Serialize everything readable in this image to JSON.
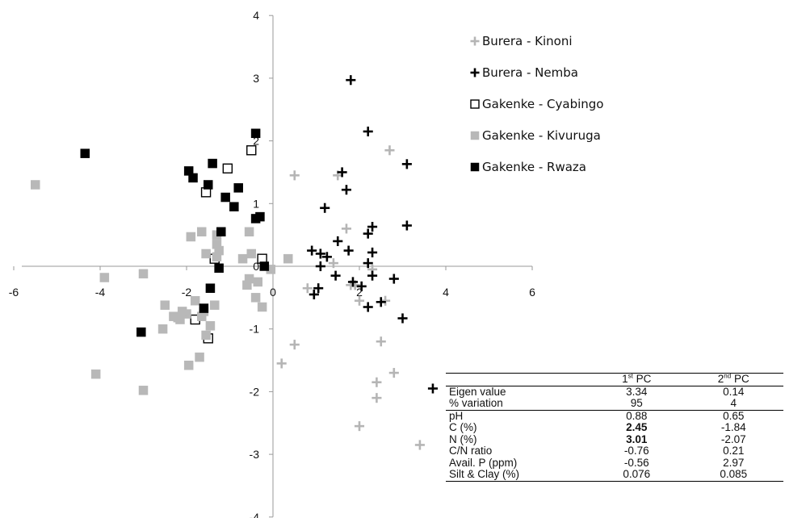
{
  "chart_data": {
    "type": "scatter",
    "xlim": [
      -6,
      6
    ],
    "ylim": [
      -4,
      4
    ],
    "x_ticks": [
      "-6",
      "-4",
      "-2",
      "0",
      "2",
      "4",
      "6"
    ],
    "y_ticks": [
      "-4",
      "-3",
      "-2",
      "-1",
      "0",
      "1",
      "2",
      "3",
      "4"
    ],
    "grid": false,
    "legend_position": "top-right",
    "series": [
      {
        "name": "Burera - Kinoni",
        "marker": "plus",
        "color": "#b5b5b5",
        "points": [
          [
            0.5,
            1.45
          ],
          [
            2.7,
            1.85
          ],
          [
            1.5,
            1.45
          ],
          [
            0.8,
            -0.35
          ],
          [
            1.8,
            -0.3
          ],
          [
            2.0,
            -0.55
          ],
          [
            2.6,
            -0.55
          ],
          [
            1.9,
            -0.3
          ],
          [
            2.3,
            -0.05
          ],
          [
            1.4,
            0.05
          ],
          [
            1.7,
            0.6
          ],
          [
            0.5,
            -1.25
          ],
          [
            0.2,
            -1.55
          ],
          [
            2.5,
            -1.2
          ],
          [
            2.4,
            -1.85
          ],
          [
            2.4,
            -2.1
          ],
          [
            2.8,
            -1.7
          ],
          [
            2.0,
            -2.55
          ],
          [
            3.4,
            -2.85
          ]
        ]
      },
      {
        "name": "Burera - Nemba",
        "marker": "plus",
        "color": "#000000",
        "points": [
          [
            1.8,
            2.97
          ],
          [
            2.2,
            2.15
          ],
          [
            1.6,
            1.5
          ],
          [
            3.1,
            1.63
          ],
          [
            1.7,
            1.22
          ],
          [
            1.2,
            0.93
          ],
          [
            2.2,
            0.52
          ],
          [
            2.3,
            0.63
          ],
          [
            3.1,
            0.65
          ],
          [
            1.5,
            0.4
          ],
          [
            0.9,
            0.25
          ],
          [
            1.1,
            0.2
          ],
          [
            1.25,
            0.15
          ],
          [
            1.75,
            0.25
          ],
          [
            2.3,
            0.22
          ],
          [
            2.2,
            0.05
          ],
          [
            1.1,
            0.0
          ],
          [
            1.45,
            -0.15
          ],
          [
            2.3,
            -0.15
          ],
          [
            1.85,
            -0.25
          ],
          [
            2.05,
            -0.32
          ],
          [
            2.8,
            -0.2
          ],
          [
            1.05,
            -0.35
          ],
          [
            0.95,
            -0.45
          ],
          [
            2.2,
            -0.65
          ],
          [
            2.5,
            -0.57
          ],
          [
            3.0,
            -0.83
          ],
          [
            3.7,
            -1.95
          ]
        ]
      },
      {
        "name": "Gakenke - Cyabingo",
        "marker": "open-square",
        "color": "#000000",
        "points": [
          [
            -0.5,
            1.85
          ],
          [
            -1.05,
            1.56
          ],
          [
            -1.55,
            1.18
          ],
          [
            -1.35,
            0.12
          ],
          [
            -0.25,
            0.12
          ],
          [
            -1.8,
            -0.85
          ],
          [
            -1.5,
            -1.15
          ]
        ]
      },
      {
        "name": "Gakenke - Kivuruga",
        "marker": "filled-square",
        "color": "#b8b8b8",
        "points": [
          [
            -5.5,
            1.3
          ],
          [
            -1.3,
            0.5
          ],
          [
            -1.65,
            0.55
          ],
          [
            -1.9,
            0.47
          ],
          [
            -0.55,
            0.55
          ],
          [
            -1.3,
            0.35
          ],
          [
            -1.25,
            0.25
          ],
          [
            -1.55,
            0.2
          ],
          [
            -0.5,
            0.2
          ],
          [
            -1.3,
            0.15
          ],
          [
            -0.05,
            -0.05
          ],
          [
            -0.7,
            0.12
          ],
          [
            -0.55,
            -0.2
          ],
          [
            -0.35,
            -0.25
          ],
          [
            0.35,
            0.12
          ],
          [
            -3.9,
            -0.18
          ],
          [
            -3.0,
            -0.12
          ],
          [
            -1.8,
            -0.55
          ],
          [
            -2.5,
            -0.62
          ],
          [
            -0.6,
            -0.3
          ],
          [
            -1.6,
            -0.72
          ],
          [
            -2.0,
            -0.76
          ],
          [
            -2.1,
            -0.72
          ],
          [
            -2.2,
            -0.82
          ],
          [
            -2.3,
            -0.8
          ],
          [
            -2.15,
            -0.85
          ],
          [
            -1.65,
            -0.8
          ],
          [
            -1.35,
            -0.62
          ],
          [
            -2.55,
            -1.0
          ],
          [
            -1.45,
            -0.95
          ],
          [
            -1.55,
            -1.1
          ],
          [
            -0.4,
            -0.5
          ],
          [
            -0.25,
            -0.65
          ],
          [
            -1.7,
            -1.45
          ],
          [
            -1.95,
            -1.58
          ],
          [
            -4.1,
            -1.72
          ],
          [
            -3.0,
            -1.98
          ]
        ]
      },
      {
        "name": "Gakenke - Rwaza",
        "marker": "filled-square",
        "color": "#000000",
        "points": [
          [
            -4.35,
            1.8
          ],
          [
            -1.95,
            1.52
          ],
          [
            -1.85,
            1.41
          ],
          [
            -1.5,
            1.3
          ],
          [
            -1.4,
            1.64
          ],
          [
            -0.8,
            1.25
          ],
          [
            -1.1,
            1.1
          ],
          [
            -0.9,
            0.95
          ],
          [
            -0.4,
            2.12
          ],
          [
            -0.4,
            0.76
          ],
          [
            -0.3,
            0.79
          ],
          [
            -1.2,
            0.55
          ],
          [
            -0.2,
            0.0
          ],
          [
            -1.25,
            -0.03
          ],
          [
            -1.45,
            -0.35
          ],
          [
            -1.6,
            -0.67
          ],
          [
            -3.05,
            -1.05
          ]
        ]
      }
    ]
  },
  "table": {
    "headers": [
      "",
      "1",
      "st",
      " PC",
      "2",
      "nd",
      " PC"
    ],
    "summary_rows": [
      {
        "label": "Eigen value",
        "pc1": "3.34",
        "pc2": "0.14"
      },
      {
        "label": "% variation",
        "pc1": "95",
        "pc2": "4"
      }
    ],
    "loading_rows": [
      {
        "label": "pH",
        "pc1": "0.88",
        "pc2": "0.65",
        "bold": false
      },
      {
        "label": "C (%)",
        "pc1": "2.45",
        "pc2": "-1.84",
        "bold": true
      },
      {
        "label": "N (%)",
        "pc1": "3.01",
        "pc2": "-2.07",
        "bold": true
      },
      {
        "label": "C/N ratio",
        "pc1": "-0.76",
        "pc2": "0.21",
        "bold": false
      },
      {
        "label": "Avail. P (ppm)",
        "pc1": "-0.56",
        "pc2": "2.97",
        "bold": false
      },
      {
        "label": "Silt & Clay (%)",
        "pc1": "0.076",
        "pc2": "0.085",
        "bold": false
      }
    ]
  }
}
